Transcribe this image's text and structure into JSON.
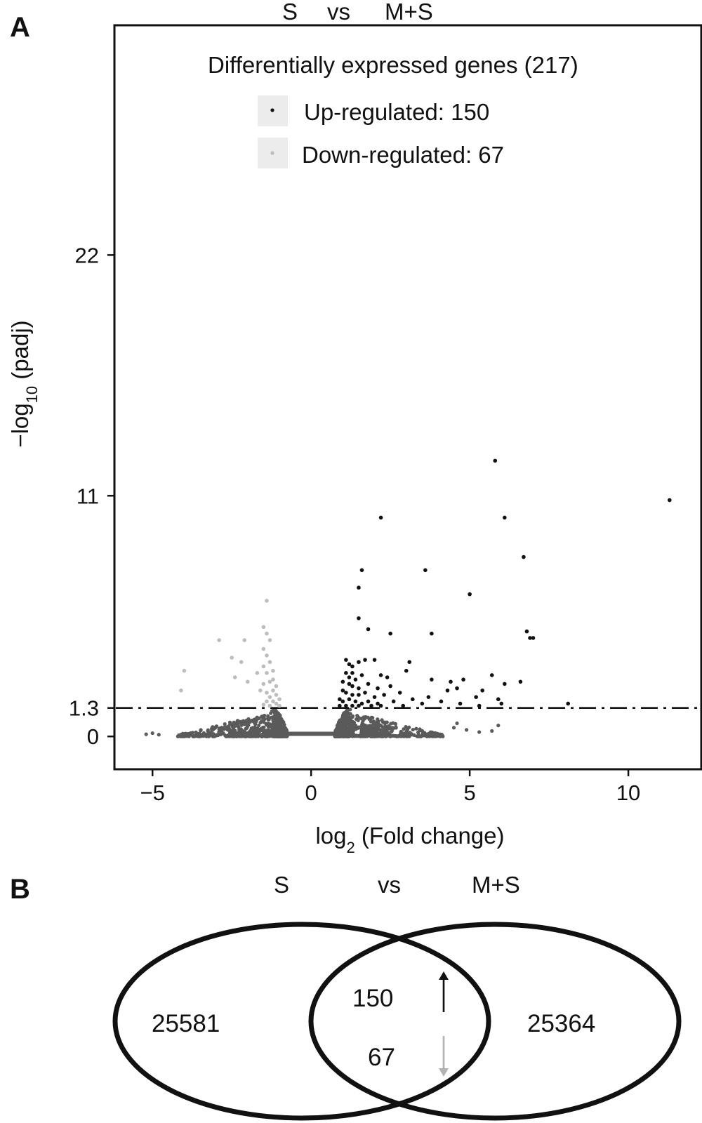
{
  "panel_a": {
    "label": "A"
  },
  "panel_b": {
    "label": "B"
  },
  "chart_data": [
    {
      "type": "scatter",
      "title_parts": [
        "S",
        "vs",
        "M+S"
      ],
      "xlabel": {
        "base": "log",
        "sub": "2",
        "rest": " (Fold change)"
      },
      "ylabel": {
        "base": "−log",
        "sub": "10",
        "rest": " (padj)"
      },
      "xlim": [
        -6.2,
        12.3
      ],
      "ylim": [
        -1.5,
        32.5
      ],
      "xticks": [
        -5,
        0,
        5,
        10
      ],
      "xtick_labels": [
        "−5",
        "0",
        "5",
        "10"
      ],
      "yticks": [
        0,
        1.3,
        11,
        22
      ],
      "ytick_labels": [
        "0",
        "1.3",
        "11",
        "22"
      ],
      "threshold": 1.3,
      "grid": false,
      "legend": {
        "title": "Differentially expressed genes (217)",
        "placement": "top-right",
        "items": [
          {
            "label": "Up-regulated: 150",
            "color": "#111111"
          },
          {
            "label": "Down-regulated: 67",
            "color": "#bdbdbd"
          }
        ]
      },
      "colors": {
        "up": "#111111",
        "down": "#bdbdbd",
        "ns": "#5a5a5a"
      },
      "series": [
        {
          "name": "Up-regulated: 150",
          "points": [
            [
              5.8,
              12.6
            ],
            [
              11.3,
              10.8
            ],
            [
              2.2,
              10.0
            ],
            [
              6.1,
              10.0
            ],
            [
              6.7,
              8.2
            ],
            [
              1.6,
              7.6
            ],
            [
              3.6,
              7.6
            ],
            [
              1.5,
              6.8
            ],
            [
              5.0,
              6.5
            ],
            [
              1.5,
              5.4
            ],
            [
              1.8,
              4.9
            ],
            [
              2.5,
              4.7
            ],
            [
              3.8,
              4.7
            ],
            [
              6.8,
              4.8
            ],
            [
              6.9,
              4.5
            ],
            [
              7.0,
              4.5
            ],
            [
              1.1,
              3.5
            ],
            [
              1.2,
              3.3
            ],
            [
              1.3,
              3.2
            ],
            [
              1.5,
              3.4
            ],
            [
              1.7,
              3.5
            ],
            [
              2.0,
              3.5
            ],
            [
              3.1,
              3.4
            ],
            [
              1.1,
              2.9
            ],
            [
              1.2,
              2.7
            ],
            [
              1.3,
              2.9
            ],
            [
              1.4,
              2.6
            ],
            [
              1.6,
              2.8
            ],
            [
              2.2,
              2.8
            ],
            [
              2.4,
              2.7
            ],
            [
              3.0,
              3.0
            ],
            [
              1.0,
              2.5
            ],
            [
              1.2,
              2.4
            ],
            [
              1.3,
              2.3
            ],
            [
              1.5,
              2.2
            ],
            [
              1.8,
              2.4
            ],
            [
              2.1,
              2.2
            ],
            [
              2.5,
              2.3
            ],
            [
              3.8,
              2.6
            ],
            [
              4.4,
              2.5
            ],
            [
              4.8,
              2.6
            ],
            [
              5.7,
              2.8
            ],
            [
              6.6,
              2.5
            ],
            [
              1.0,
              2.1
            ],
            [
              1.1,
              2.0
            ],
            [
              1.3,
              1.9
            ],
            [
              1.5,
              1.9
            ],
            [
              1.7,
              2.0
            ],
            [
              2.0,
              1.8
            ],
            [
              2.3,
              1.9
            ],
            [
              2.8,
              2.0
            ],
            [
              4.3,
              2.1
            ],
            [
              4.6,
              2.2
            ],
            [
              5.4,
              2.1
            ],
            [
              6.1,
              2.4
            ],
            [
              0.9,
              1.7
            ],
            [
              1.0,
              1.6
            ],
            [
              1.2,
              1.7
            ],
            [
              1.4,
              1.6
            ],
            [
              1.6,
              1.5
            ],
            [
              1.8,
              1.6
            ],
            [
              2.1,
              1.5
            ],
            [
              2.6,
              1.6
            ],
            [
              3.2,
              1.7
            ],
            [
              3.7,
              1.8
            ],
            [
              4.1,
              1.6
            ],
            [
              5.2,
              1.8
            ],
            [
              5.9,
              1.7
            ],
            [
              0.9,
              1.4
            ],
            [
              1.1,
              1.4
            ],
            [
              1.3,
              1.4
            ],
            [
              1.5,
              1.4
            ],
            [
              1.9,
              1.4
            ],
            [
              2.2,
              1.4
            ],
            [
              2.9,
              1.4
            ],
            [
              3.5,
              1.5
            ],
            [
              4.7,
              1.5
            ],
            [
              5.3,
              1.4
            ],
            [
              6.0,
              1.5
            ],
            [
              8.1,
              1.5
            ]
          ]
        },
        {
          "name": "Down-regulated: 67",
          "points": [
            [
              -1.4,
              6.2
            ],
            [
              -1.5,
              5.0
            ],
            [
              -1.4,
              4.7
            ],
            [
              -1.3,
              4.4
            ],
            [
              -2.9,
              4.4
            ],
            [
              -2.1,
              4.4
            ],
            [
              -1.5,
              4.0
            ],
            [
              -1.4,
              3.7
            ],
            [
              -2.5,
              3.6
            ],
            [
              -2.2,
              3.4
            ],
            [
              -1.3,
              3.4
            ],
            [
              -1.5,
              3.2
            ],
            [
              -4.0,
              3.0
            ],
            [
              -1.2,
              3.0
            ],
            [
              -1.4,
              2.9
            ],
            [
              -1.7,
              2.9
            ],
            [
              -2.4,
              2.7
            ],
            [
              -1.2,
              2.6
            ],
            [
              -1.3,
              2.5
            ],
            [
              -1.5,
              2.4
            ],
            [
              -2.0,
              2.5
            ],
            [
              -4.1,
              2.1
            ],
            [
              -1.1,
              2.3
            ],
            [
              -1.2,
              2.1
            ],
            [
              -1.4,
              2.0
            ],
            [
              -1.6,
              2.1
            ],
            [
              -1.1,
              1.9
            ],
            [
              -1.3,
              1.8
            ],
            [
              -1.0,
              1.7
            ],
            [
              -1.2,
              1.6
            ],
            [
              -1.4,
              1.6
            ],
            [
              -1.1,
              1.5
            ],
            [
              -1.0,
              1.4
            ],
            [
              -1.3,
              1.4
            ],
            [
              -1.5,
              1.45
            ]
          ]
        }
      ]
    },
    {
      "type": "venn",
      "labels": [
        "S",
        "vs",
        "M+S"
      ],
      "left_only": "25581",
      "right_only": "25364",
      "intersection_up": "150",
      "intersection_down": "67",
      "arrow_up_color": "#111111",
      "arrow_down_color": "#b3b3b3"
    }
  ]
}
